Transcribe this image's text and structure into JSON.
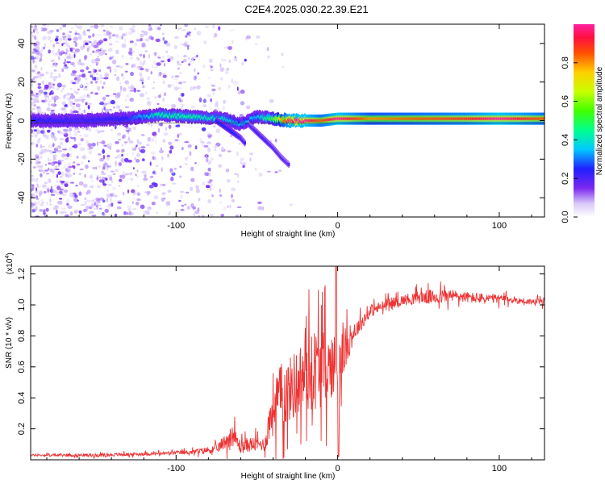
{
  "title": "C2E4.2025.030.22.39.E21",
  "chart_data": [
    {
      "type": "heatmap",
      "name": "spectrogram",
      "xlabel": "Height of straight line (km)",
      "ylabel": "Frequency (Hz)",
      "xlim": [
        -190,
        128
      ],
      "ylim": [
        -50,
        50
      ],
      "xticks": [
        -100,
        0,
        100
      ],
      "xtick_labels": [
        "-100",
        "0",
        "100"
      ],
      "yticks": [
        40,
        20,
        0,
        -20,
        -40
      ],
      "ytick_labels": [
        "40",
        "20",
        "0",
        "-20",
        "-40"
      ],
      "colorbar": {
        "label": "Normalized spectral amplitude",
        "range": [
          0,
          1
        ],
        "ticks": [
          0.0,
          0.2,
          0.4,
          0.6,
          0.8
        ],
        "tick_labels": [
          "0.0",
          "0.2",
          "0.4",
          "0.6",
          "0.8"
        ]
      },
      "ridges": [
        {
          "name": "main-ridge",
          "x": [
            -190,
            -160,
            -130,
            -110,
            -90,
            -70,
            -60,
            -50,
            -40,
            -30,
            -20,
            -10,
            0,
            20,
            50,
            80,
            100,
            128
          ],
          "y": [
            0,
            0,
            1,
            3,
            2,
            1,
            -2,
            2,
            1,
            0,
            0,
            0,
            1,
            1,
            1,
            1,
            1,
            1
          ],
          "amp": [
            0.25,
            0.22,
            0.25,
            0.45,
            0.45,
            0.4,
            0.35,
            0.35,
            0.55,
            0.95,
            1.0,
            0.85,
            1.0,
            0.8,
            0.85,
            0.9,
            1.0,
            0.85
          ]
        },
        {
          "name": "descending-branch-1",
          "x": [
            -75,
            -70,
            -65,
            -60,
            -57
          ],
          "y": [
            0,
            -3,
            -6,
            -9,
            -12
          ],
          "amp": [
            0.25,
            0.25,
            0.25,
            0.22,
            0.2
          ]
        },
        {
          "name": "descending-branch-2",
          "x": [
            -55,
            -50,
            -45,
            -40,
            -35,
            -30
          ],
          "y": [
            -2,
            -6,
            -10,
            -14,
            -19,
            -23
          ],
          "amp": [
            0.2,
            0.22,
            0.22,
            0.2,
            0.2,
            0.18
          ]
        }
      ]
    },
    {
      "type": "line",
      "name": "snr",
      "xlabel": "Height of straight line (km)",
      "ylabel": "SNR (10 * v/v)",
      "exponent_label": "(x10",
      "exponent_power": "4",
      "exponent_close": ")",
      "xlim": [
        -190,
        128
      ],
      "ylim": [
        0,
        1.25
      ],
      "xticks": [
        -100,
        0,
        100
      ],
      "xtick_labels": [
        "-100",
        "0",
        "100"
      ],
      "yticks": [
        0.2,
        0.4,
        0.6,
        0.8,
        1.0,
        1.2
      ],
      "ytick_labels": [
        "0.2",
        "0.4",
        "0.6",
        "0.8",
        "1.0",
        "1.2"
      ],
      "color": "#ee3333",
      "x": [
        -190,
        -150,
        -110,
        -90,
        -75,
        -65,
        -60,
        -55,
        -45,
        -40,
        -30,
        -20,
        -12,
        -5,
        0,
        10,
        20,
        30,
        40,
        50,
        60,
        70,
        80,
        90,
        100,
        110,
        120,
        128
      ],
      "y": [
        0.03,
        0.03,
        0.04,
        0.05,
        0.07,
        0.16,
        0.08,
        0.1,
        0.1,
        0.36,
        0.45,
        0.55,
        0.6,
        0.6,
        0.62,
        0.82,
        0.96,
        1.0,
        1.03,
        1.05,
        1.05,
        1.06,
        1.05,
        1.04,
        1.04,
        1.03,
        1.02,
        1.02
      ],
      "noise": [
        0.01,
        0.015,
        0.015,
        0.02,
        0.04,
        0.1,
        0.06,
        0.07,
        0.06,
        0.3,
        0.3,
        0.35,
        0.4,
        0.3,
        0.3,
        0.08,
        0.06,
        0.05,
        0.05,
        0.06,
        0.07,
        0.06,
        0.05,
        0.05,
        0.04,
        0.03,
        0.03,
        0.03
      ]
    }
  ]
}
